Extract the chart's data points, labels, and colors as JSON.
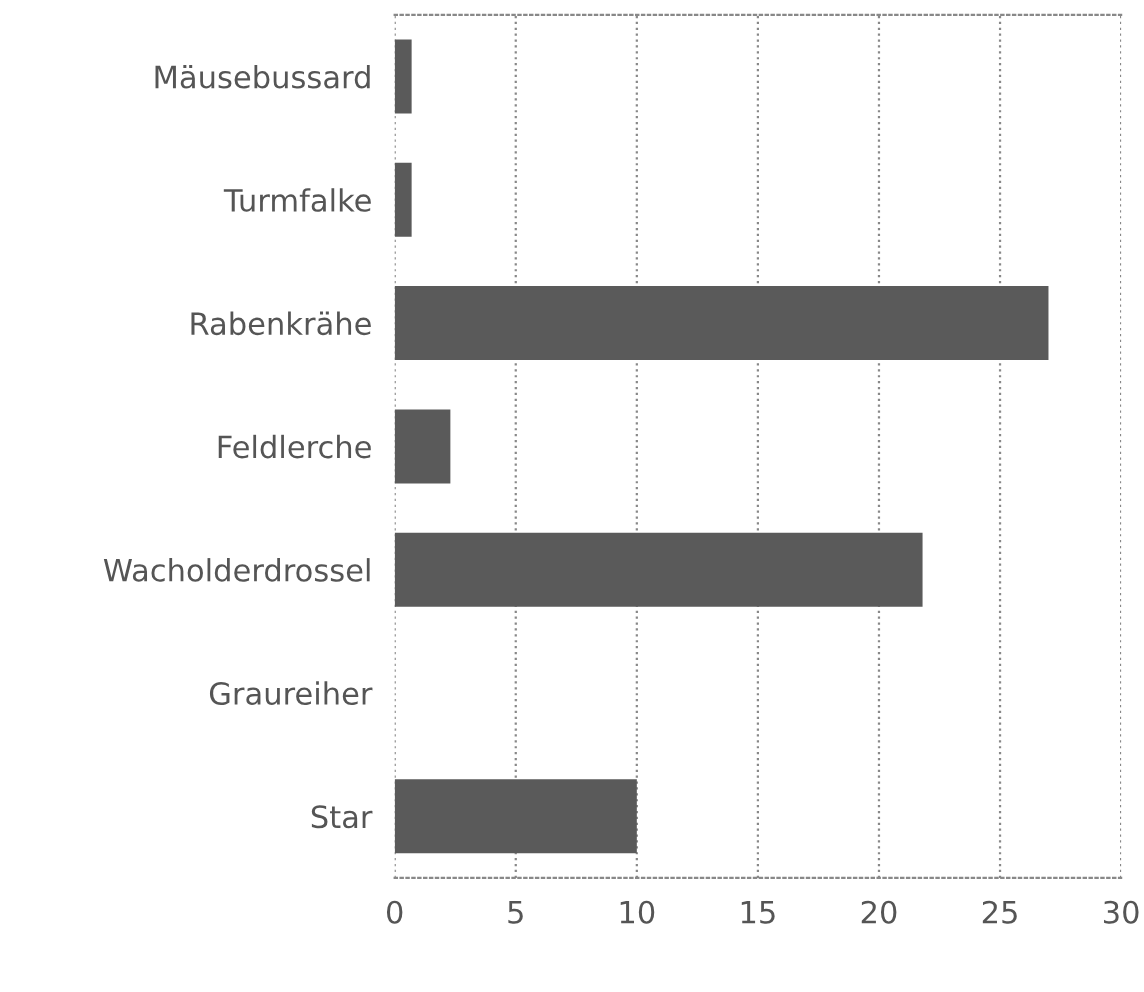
{
  "chart_data": {
    "type": "bar",
    "orientation": "horizontal",
    "categories": [
      "Mäusebussard",
      "Turmfalke",
      "Rabenkrähe",
      "Feldlerche",
      "Wacholderdrossel",
      "Graureiher",
      "Star"
    ],
    "values": [
      0.7,
      0.7,
      27,
      2.3,
      21.8,
      0,
      10
    ],
    "color": "#5a5a5a",
    "xlim": [
      0,
      30
    ],
    "xticks": [
      0,
      5,
      10,
      15,
      20,
      25,
      30
    ],
    "grid": "x"
  }
}
